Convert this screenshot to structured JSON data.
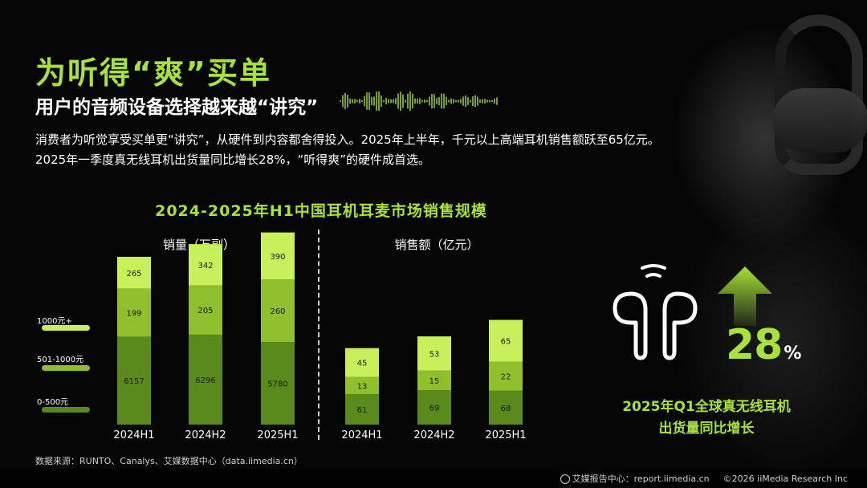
{
  "slide": {
    "title": "为听得“爽”买单",
    "subtitle": "用户的音频设备选择越来越“讲究”",
    "desc_line1": "消费者为听觉享受买单更“讲究”，从硬件到内容都舍得投入。2025年上半年，千元以上高端耳机销售额跃至65亿元。",
    "desc_line2": "2025年一季度真无线耳机出货量同比增长28%，“听得爽”的硬件成首选。",
    "source": "数据来源：RUNTO、Canalys、艾媒数据中心（data.iimedia.cn）",
    "footer_brand": "艾媒报告中心：report.iimedia.cn",
    "footer_copyright": "©2026  iiMedia Research  Inc"
  },
  "highlight": {
    "value": "28",
    "unit": "%",
    "caption_line1": "2025年Q1全球真无线耳机",
    "caption_line2": "出货量同比增长"
  },
  "colors": {
    "accent": "#a6e23b",
    "tier_high": "#c8f05a",
    "tier_mid": "#8fbf2c",
    "tier_low": "#5b8a1c"
  },
  "chart_data": {
    "type": "bar",
    "title": "2024-2025年H1中国耳机耳麦市场销售规模",
    "stacked": true,
    "legend": [
      "1000元+",
      "501-1000元",
      "0-500元"
    ],
    "legend_placement": "left",
    "panels": [
      {
        "title": "销量（万副）",
        "categories": [
          "2024H1",
          "2024H2",
          "2025H1"
        ],
        "series": [
          {
            "name": "0-500元",
            "values": [
              6157,
              6296,
              5780
            ]
          },
          {
            "name": "501-1000元",
            "values": [
              199,
              205,
              260
            ]
          },
          {
            "name": "1000元+",
            "values": [
              265,
              342,
              390
            ]
          }
        ]
      },
      {
        "title": "销售额（亿元）",
        "categories": [
          "2024H1",
          "2024H2",
          "2025H1"
        ],
        "series": [
          {
            "name": "0-500元",
            "values": [
              61,
              69,
              68
            ]
          },
          {
            "name": "501-1000元",
            "values": [
              13,
              15,
              22
            ]
          },
          {
            "name": "1000元+",
            "values": [
              45,
              53,
              65
            ]
          }
        ]
      }
    ]
  }
}
